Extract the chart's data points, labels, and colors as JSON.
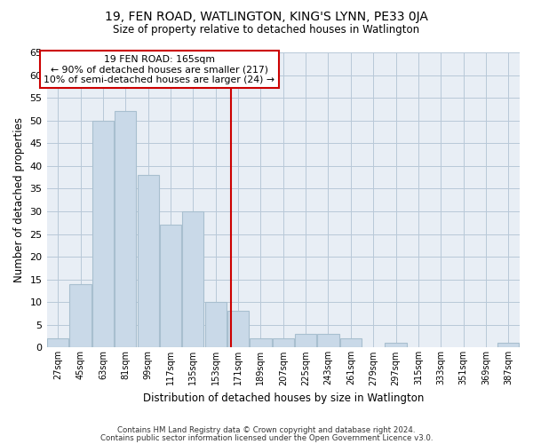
{
  "title": "19, FEN ROAD, WATLINGTON, KING'S LYNN, PE33 0JA",
  "subtitle": "Size of property relative to detached houses in Watlington",
  "xlabel": "Distribution of detached houses by size in Watlington",
  "ylabel": "Number of detached properties",
  "categories": [
    "27sqm",
    "45sqm",
    "63sqm",
    "81sqm",
    "99sqm",
    "117sqm",
    "135sqm",
    "153sqm",
    "171sqm",
    "189sqm",
    "207sqm",
    "225sqm",
    "243sqm",
    "261sqm",
    "279sqm",
    "297sqm",
    "315sqm",
    "333sqm",
    "351sqm",
    "369sqm",
    "387sqm"
  ],
  "values": [
    2,
    14,
    50,
    52,
    38,
    27,
    30,
    10,
    8,
    2,
    2,
    3,
    3,
    2,
    0,
    1,
    0,
    0,
    0,
    0,
    1
  ],
  "bar_color": "#c9d9e8",
  "bar_edge_color": "#a8bfcf",
  "grid_color": "#b8c8d8",
  "background_color": "#e8eef5",
  "vline_x": 165,
  "bin_width": 18,
  "annotation_text": "19 FEN ROAD: 165sqm\n← 90% of detached houses are smaller (217)\n10% of semi-detached houses are larger (24) →",
  "annotation_box_color": "#ffffff",
  "annotation_box_edge_color": "#cc0000",
  "vline_color": "#cc0000",
  "footer1": "Contains HM Land Registry data © Crown copyright and database right 2024.",
  "footer2": "Contains public sector information licensed under the Open Government Licence v3.0.",
  "ylim": [
    0,
    65
  ],
  "yticks": [
    0,
    5,
    10,
    15,
    20,
    25,
    30,
    35,
    40,
    45,
    50,
    55,
    60,
    65
  ]
}
